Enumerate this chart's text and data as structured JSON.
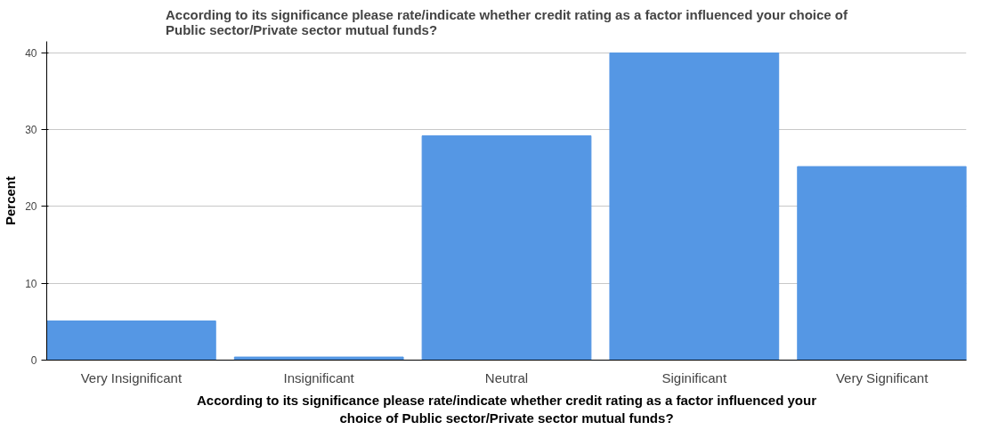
{
  "chart_data": {
    "type": "bar",
    "title": "According to its significance please rate/indicate whether credit rating as a factor influenced your choice of Public sector/Private sector mutual funds?",
    "xlabel": "According to its significance please rate/indicate whether credit rating as a factor influenced your choice of Public sector/Private sector mutual funds?",
    "ylabel": "Percent",
    "categories": [
      "Very Insignificant",
      "Insignificant",
      "Neutral",
      "Siginificant",
      "Very Significant"
    ],
    "values": [
      5.1,
      0.4,
      29.2,
      40.0,
      25.2
    ],
    "color": "#5597e4",
    "ylim": [
      0,
      41.5
    ],
    "yticks": [
      0,
      10,
      20,
      30,
      40
    ],
    "grid": "y"
  }
}
